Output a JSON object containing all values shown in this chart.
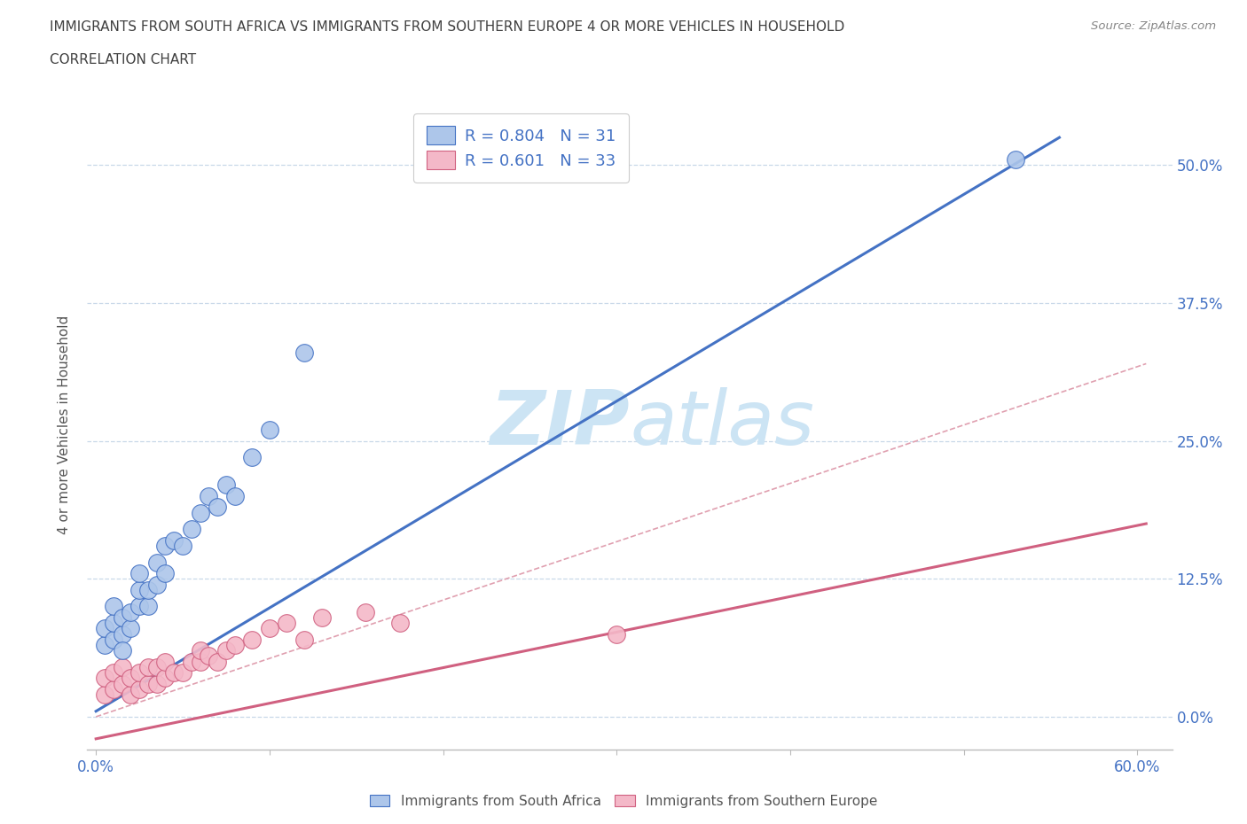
{
  "title_line1": "IMMIGRANTS FROM SOUTH AFRICA VS IMMIGRANTS FROM SOUTHERN EUROPE 4 OR MORE VEHICLES IN HOUSEHOLD",
  "title_line2": "CORRELATION CHART",
  "source_text": "Source: ZipAtlas.com",
  "ylabel": "4 or more Vehicles in Household",
  "xmin": -0.005,
  "xmax": 0.62,
  "ymin": -0.03,
  "ymax": 0.56,
  "xticks": [
    0.0,
    0.1,
    0.2,
    0.3,
    0.4,
    0.5,
    0.6
  ],
  "yticks": [
    0.0,
    0.125,
    0.25,
    0.375,
    0.5
  ],
  "ytick_labels": [
    "0.0%",
    "12.5%",
    "25.0%",
    "37.5%",
    "50.0%"
  ],
  "xtick_labels": [
    "0.0%",
    "",
    "",
    "",
    "",
    "",
    "60.0%"
  ],
  "blue_R": 0.804,
  "blue_N": 31,
  "pink_R": 0.601,
  "pink_N": 33,
  "blue_color": "#adc6ea",
  "pink_color": "#f4b8c8",
  "blue_line_color": "#4472c4",
  "pink_line_color": "#d06080",
  "diagonal_color": "#e0a0b0",
  "grid_color": "#c8d8e8",
  "title_color": "#404040",
  "legend_text_color": "#4472c4",
  "watermark_color": "#cce4f4",
  "blue_scatter_x": [
    0.005,
    0.005,
    0.01,
    0.01,
    0.01,
    0.015,
    0.015,
    0.02,
    0.02,
    0.025,
    0.025,
    0.025,
    0.03,
    0.03,
    0.035,
    0.035,
    0.04,
    0.04,
    0.045,
    0.05,
    0.055,
    0.06,
    0.065,
    0.07,
    0.075,
    0.08,
    0.09,
    0.1,
    0.12,
    0.53,
    0.015
  ],
  "blue_scatter_y": [
    0.065,
    0.08,
    0.07,
    0.085,
    0.1,
    0.075,
    0.09,
    0.08,
    0.095,
    0.1,
    0.115,
    0.13,
    0.1,
    0.115,
    0.12,
    0.14,
    0.13,
    0.155,
    0.16,
    0.155,
    0.17,
    0.185,
    0.2,
    0.19,
    0.21,
    0.2,
    0.235,
    0.26,
    0.33,
    0.505,
    0.06
  ],
  "pink_scatter_x": [
    0.005,
    0.005,
    0.01,
    0.01,
    0.015,
    0.015,
    0.02,
    0.02,
    0.025,
    0.025,
    0.03,
    0.03,
    0.035,
    0.035,
    0.04,
    0.04,
    0.045,
    0.05,
    0.055,
    0.06,
    0.06,
    0.065,
    0.07,
    0.075,
    0.08,
    0.09,
    0.1,
    0.11,
    0.12,
    0.13,
    0.155,
    0.175,
    0.3
  ],
  "pink_scatter_y": [
    0.02,
    0.035,
    0.025,
    0.04,
    0.03,
    0.045,
    0.02,
    0.035,
    0.025,
    0.04,
    0.03,
    0.045,
    0.03,
    0.045,
    0.035,
    0.05,
    0.04,
    0.04,
    0.05,
    0.05,
    0.06,
    0.055,
    0.05,
    0.06,
    0.065,
    0.07,
    0.08,
    0.085,
    0.07,
    0.09,
    0.095,
    0.085,
    0.075
  ],
  "blue_line_x": [
    0.0,
    0.555
  ],
  "blue_line_y": [
    0.005,
    0.525
  ],
  "pink_line_x": [
    0.0,
    0.605
  ],
  "pink_line_y": [
    -0.02,
    0.175
  ],
  "diag_line_x": [
    0.0,
    0.605
  ],
  "diag_line_y": [
    0.0,
    0.32
  ]
}
